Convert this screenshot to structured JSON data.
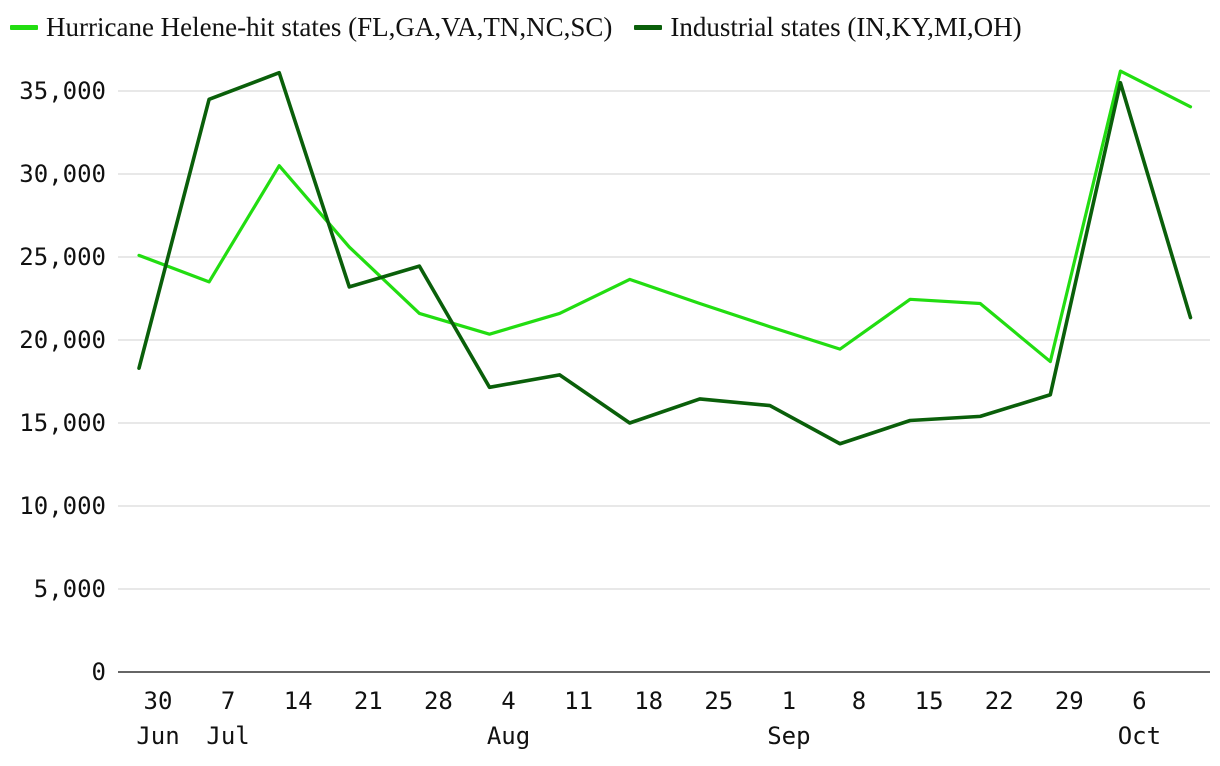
{
  "chart_data": {
    "type": "line",
    "title": "",
    "xlabel": "",
    "ylabel": "",
    "x": [
      "2024-06-30",
      "2024-07-07",
      "2024-07-14",
      "2024-07-21",
      "2024-07-28",
      "2024-08-04",
      "2024-08-11",
      "2024-08-18",
      "2024-08-25",
      "2024-09-01",
      "2024-09-08",
      "2024-09-15",
      "2024-09-22",
      "2024-09-29",
      "2024-10-06",
      "2024-10-13"
    ],
    "x_tick_labels": [
      "30",
      "7",
      "14",
      "21",
      "28",
      "4",
      "11",
      "18",
      "25",
      "1",
      "8",
      "15",
      "22",
      "29",
      "6"
    ],
    "x_month_labels": [
      {
        "label": "Jun",
        "at": 0
      },
      {
        "label": "Jul",
        "at": 1
      },
      {
        "label": "Aug",
        "at": 5
      },
      {
        "label": "Sep",
        "at": 9
      },
      {
        "label": "Oct",
        "at": 14
      }
    ],
    "ylim": [
      0,
      37000
    ],
    "y_ticks": [
      0,
      5000,
      10000,
      15000,
      20000,
      25000,
      30000,
      35000
    ],
    "y_tick_labels": [
      "0",
      "5,000",
      "10,000",
      "15,000",
      "20,000",
      "25,000",
      "30,000",
      "35,000"
    ],
    "grid": true,
    "legend_position": "top-left",
    "series": [
      {
        "name": "Hurricane Helene-hit states (FL,GA,VA,TN,NC,SC)",
        "color": "#22dd11",
        "values": [
          25100,
          23500,
          30500,
          25600,
          21600,
          20350,
          21600,
          23650,
          22200,
          20800,
          19450,
          22450,
          22200,
          18700,
          36200,
          34050
        ]
      },
      {
        "name": "Industrial states (IN,KY,MI,OH)",
        "color": "#0a5f0a",
        "values": [
          18300,
          34500,
          36100,
          23200,
          24450,
          17150,
          17900,
          15000,
          16450,
          16050,
          13750,
          15150,
          15400,
          16700,
          35500,
          21350
        ]
      }
    ]
  }
}
